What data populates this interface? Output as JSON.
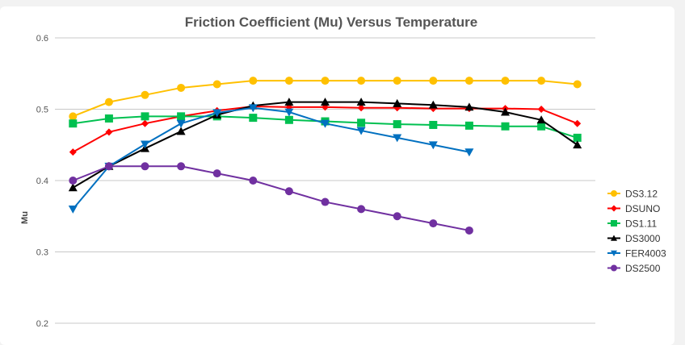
{
  "chart_data": {
    "type": "line",
    "title": "Friction Coefficient (Mu) Versus Temperature",
    "xlabel": "",
    "ylabel": "Mu",
    "ylim": [
      0.2,
      0.6
    ],
    "yticks": [
      "0.2",
      "0.3",
      "0.4",
      "0.5",
      "0.6"
    ],
    "grid": true,
    "legend_position": "right",
    "series": [
      {
        "name": "DS3.12",
        "color": "#ffc000",
        "marker": "circle",
        "values": [
          0.49,
          0.51,
          0.52,
          0.53,
          0.535,
          0.54,
          0.54,
          0.54,
          0.54,
          0.54,
          0.54,
          0.54,
          0.54,
          0.54,
          0.535
        ]
      },
      {
        "name": "DSUNO",
        "color": "#ff0000",
        "marker": "diamond",
        "values": [
          0.44,
          0.468,
          0.48,
          0.49,
          0.498,
          0.504,
          0.503,
          0.503,
          0.502,
          0.502,
          0.501,
          0.501,
          0.501,
          0.5,
          0.48
        ]
      },
      {
        "name": "DS1.11",
        "color": "#00c050",
        "marker": "square",
        "values": [
          0.48,
          0.487,
          0.49,
          0.49,
          0.49,
          0.488,
          0.485,
          0.483,
          0.481,
          0.479,
          0.478,
          0.477,
          0.476,
          0.476,
          0.46
        ]
      },
      {
        "name": "DS3000",
        "color": "#000000",
        "marker": "triangle",
        "values": [
          0.39,
          0.42,
          0.445,
          0.469,
          0.492,
          0.505,
          0.51,
          0.51,
          0.51,
          0.508,
          0.506,
          0.503,
          0.496,
          0.485,
          0.45
        ]
      },
      {
        "name": "FER4003",
        "color": "#0070c0",
        "marker": "triangle-down",
        "values": [
          0.36,
          0.42,
          0.451,
          0.48,
          0.495,
          0.502,
          0.496,
          0.48,
          0.47,
          0.46,
          0.45,
          0.44,
          null,
          null,
          null
        ]
      },
      {
        "name": "DS2500",
        "color": "#7030a0",
        "marker": "circle",
        "values": [
          0.4,
          0.42,
          0.42,
          0.42,
          0.41,
          0.4,
          0.385,
          0.37,
          0.36,
          0.35,
          0.34,
          0.33,
          null,
          null,
          null
        ]
      }
    ]
  }
}
